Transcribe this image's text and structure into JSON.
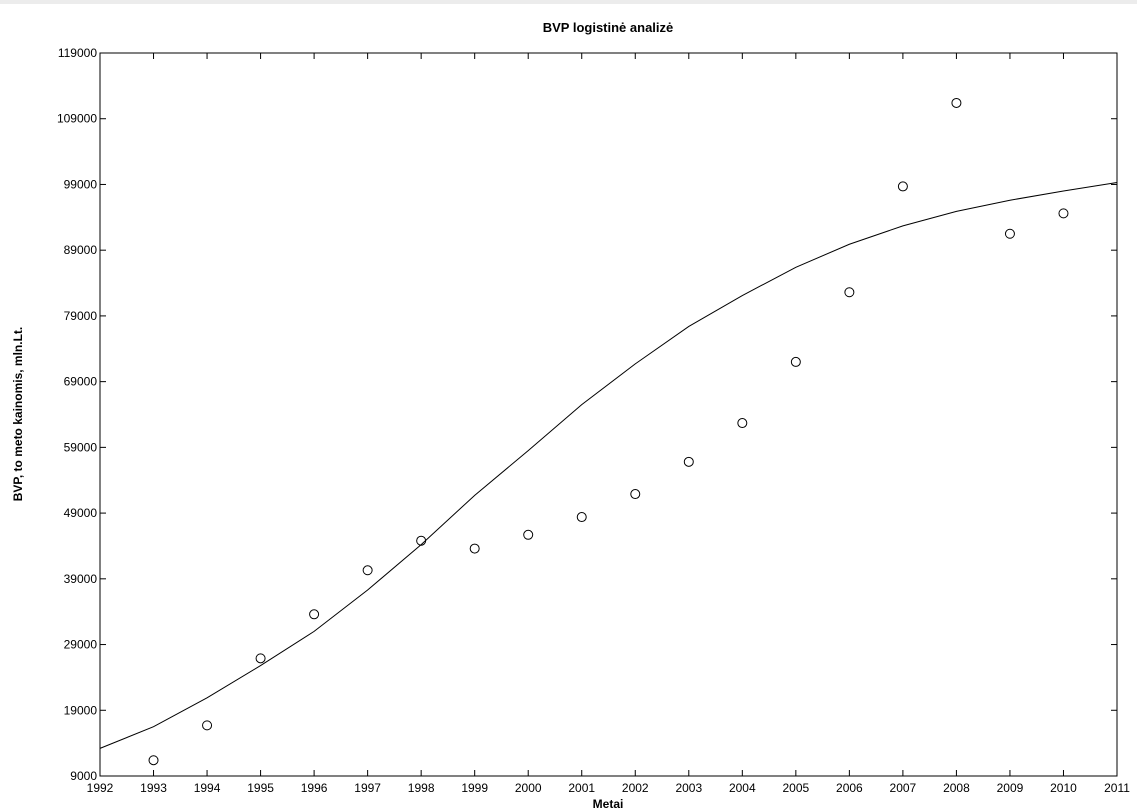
{
  "chart_data": {
    "type": "scatter",
    "title": "BVP logistinė analizė",
    "xlabel": "Metai",
    "ylabel": "BVP, to meto kainomis, mln.Lt.",
    "xlim": [
      1992,
      2011
    ],
    "ylim": [
      9000,
      119000
    ],
    "x_ticks": [
      1992,
      1993,
      1994,
      1995,
      1996,
      1997,
      1998,
      1999,
      2000,
      2001,
      2002,
      2003,
      2004,
      2005,
      2006,
      2007,
      2008,
      2009,
      2010,
      2011
    ],
    "y_ticks": [
      9000,
      19000,
      29000,
      39000,
      49000,
      59000,
      69000,
      79000,
      89000,
      99000,
      109000,
      119000
    ],
    "grid": false,
    "series": [
      {
        "kind": "markers",
        "marker": "open-circle",
        "color": "#000000",
        "x": [
          1993,
          1994,
          1995,
          1996,
          1997,
          1998,
          1999,
          2000,
          2001,
          2002,
          2003,
          2004,
          2005,
          2006,
          2007,
          2008,
          2009,
          2010
        ],
        "y": [
          11400,
          16700,
          26900,
          33600,
          40300,
          44800,
          43600,
          45700,
          48400,
          51900,
          56800,
          62700,
          72000,
          82600,
          98700,
          111400,
          91500,
          94600
        ]
      },
      {
        "kind": "line",
        "color": "#000000",
        "x": [
          1992,
          1993,
          1994,
          1995,
          1996,
          1997,
          1998,
          1999,
          2000,
          2001,
          2002,
          2003,
          2004,
          2005,
          2006,
          2007,
          2008,
          2009,
          2010,
          2011
        ],
        "y": [
          13200,
          16500,
          20900,
          25800,
          31000,
          37300,
          44200,
          51700,
          58500,
          65500,
          71700,
          77400,
          82100,
          86400,
          89900,
          92700,
          94900,
          96600,
          98000,
          99300
        ]
      }
    ]
  }
}
